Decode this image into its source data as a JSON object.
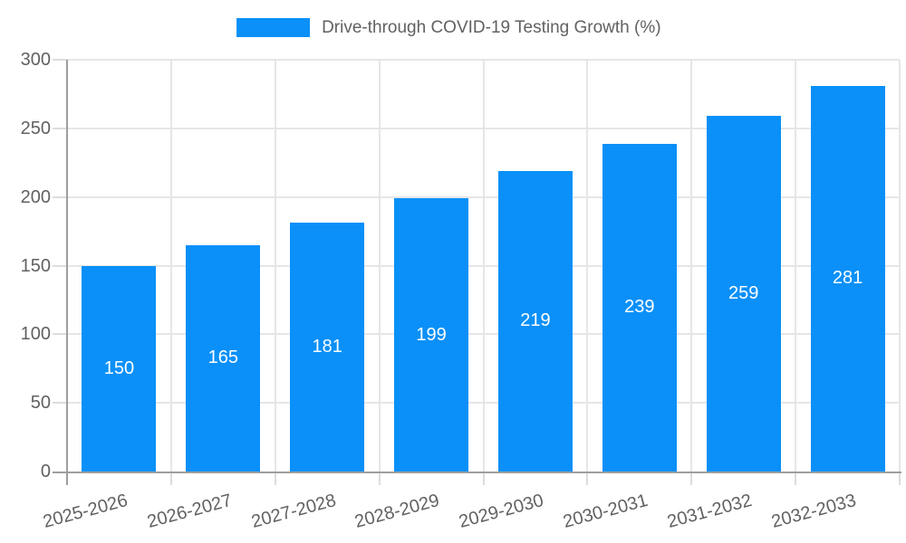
{
  "chart_data": {
    "type": "bar",
    "title": "Drive-through COVID-19 Testing Growth (%)",
    "categories": [
      "2025-2026",
      "2026-2027",
      "2027-2028",
      "2028-2029",
      "2029-2030",
      "2030-2031",
      "2031-2032",
      "2032-2033"
    ],
    "values": [
      150,
      165,
      181,
      199,
      219,
      239,
      259,
      281
    ],
    "xlabel": "",
    "ylabel": "",
    "ylim": [
      0,
      300
    ],
    "yticks": [
      0,
      50,
      100,
      150,
      200,
      250,
      300
    ],
    "grid": true,
    "legend_position": "top-center",
    "x_tick_rotation_deg": -15,
    "bar_labels_inside": true,
    "colors": {
      "bar": "#0a90f8",
      "bar_label_text": "#ffffff",
      "axis_line": "#9e9e9e",
      "gridline": "#e6e6e6",
      "tick_mark": "#dcdcdc",
      "tick_label_text": "#616161",
      "legend_text": "#616161",
      "background": "#ffffff"
    }
  }
}
